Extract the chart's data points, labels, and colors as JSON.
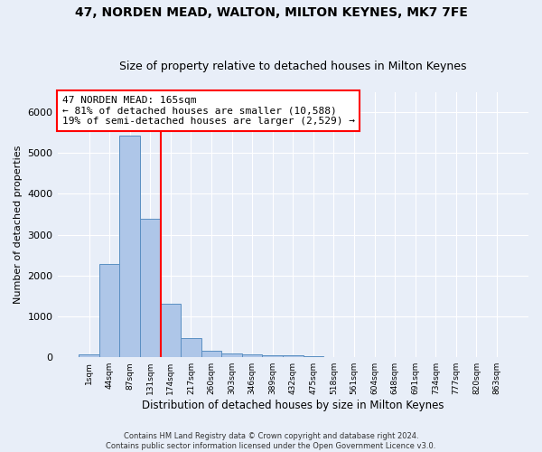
{
  "title": "47, NORDEN MEAD, WALTON, MILTON KEYNES, MK7 7FE",
  "subtitle": "Size of property relative to detached houses in Milton Keynes",
  "xlabel": "Distribution of detached houses by size in Milton Keynes",
  "ylabel": "Number of detached properties",
  "bar_labels": [
    "1sqm",
    "44sqm",
    "87sqm",
    "131sqm",
    "174sqm",
    "217sqm",
    "260sqm",
    "303sqm",
    "346sqm",
    "389sqm",
    "432sqm",
    "475sqm",
    "518sqm",
    "561sqm",
    "604sqm",
    "648sqm",
    "691sqm",
    "734sqm",
    "777sqm",
    "820sqm",
    "863sqm"
  ],
  "bar_values": [
    75,
    2280,
    5420,
    3380,
    1310,
    480,
    160,
    90,
    70,
    55,
    40,
    30,
    0,
    0,
    0,
    0,
    0,
    0,
    0,
    0,
    0
  ],
  "bar_color": "#aec6e8",
  "bar_edge_color": "#5a8fc2",
  "vline_x": 3.5,
  "vline_color": "red",
  "ylim": [
    0,
    6500
  ],
  "annotation_text": "47 NORDEN MEAD: 165sqm\n← 81% of detached houses are smaller (10,588)\n19% of semi-detached houses are larger (2,529) →",
  "annotation_box_color": "white",
  "annotation_box_edge": "red",
  "footer_line1": "Contains HM Land Registry data © Crown copyright and database right 2024.",
  "footer_line2": "Contains public sector information licensed under the Open Government Licence v3.0.",
  "bg_color": "#e8eef8",
  "grid_color": "#ffffff",
  "title_fontsize": 10,
  "subtitle_fontsize": 9,
  "annotation_fontsize": 8,
  "ylabel_fontsize": 8,
  "xlabel_fontsize": 8.5,
  "ytick_fontsize": 8,
  "xtick_fontsize": 6.5,
  "footer_fontsize": 6
}
